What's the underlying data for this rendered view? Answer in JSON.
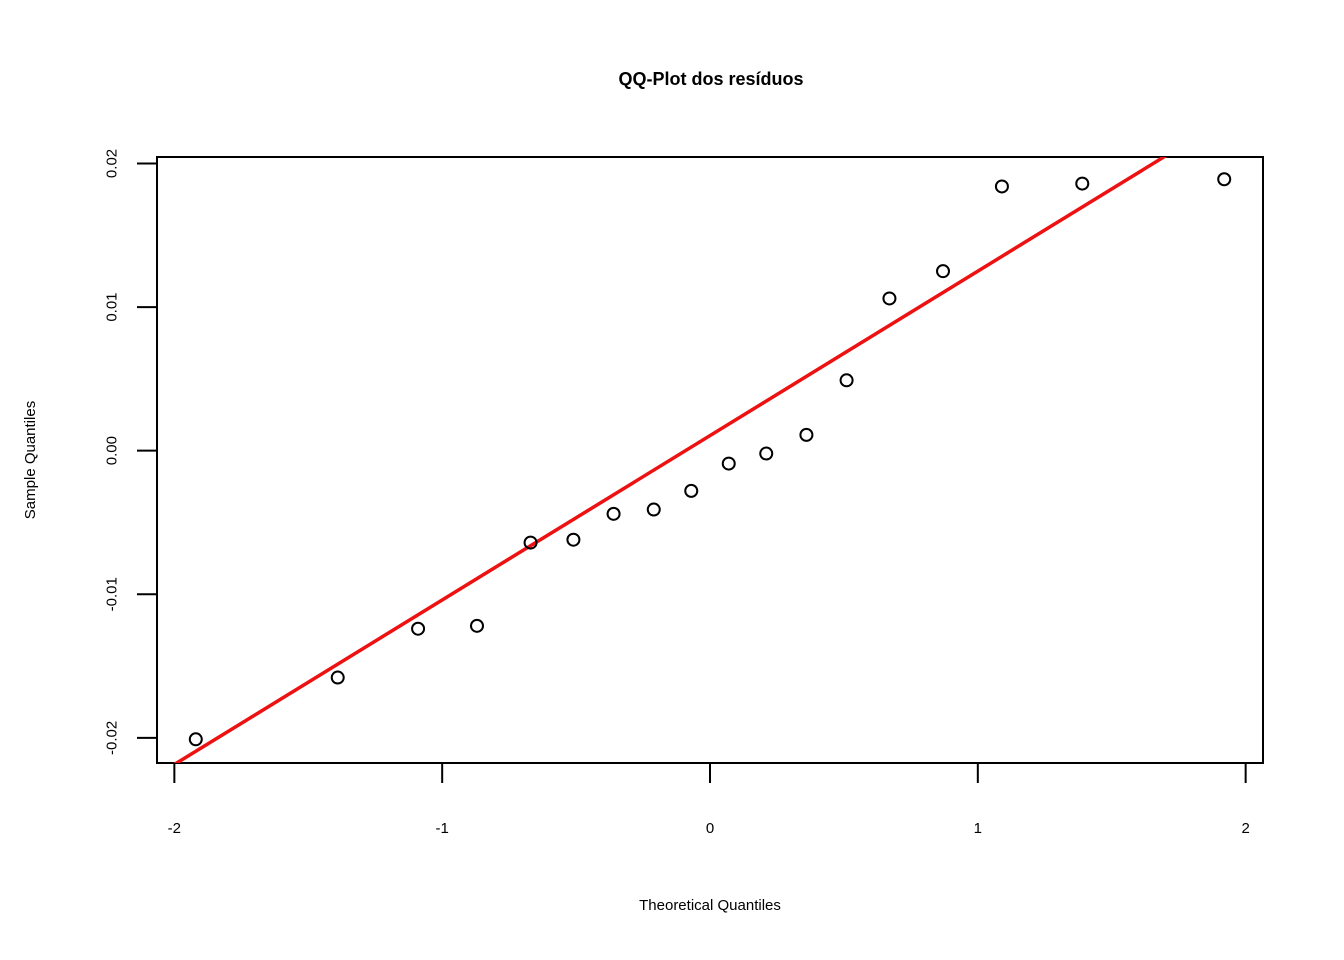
{
  "chart_data": {
    "type": "scatter",
    "title": "QQ-Plot dos resíduos",
    "xlabel": "Theoretical Quantiles",
    "ylabel": "Sample Quantiles",
    "xlim": [
      -2.0648,
      2.0648
    ],
    "ylim": [
      -0.02175,
      0.02045
    ],
    "x_ticks": [
      -2,
      -1,
      0,
      1,
      2
    ],
    "x_tick_labels": [
      "-2",
      "-1",
      "0",
      "1",
      "2"
    ],
    "y_ticks": [
      -0.02,
      -0.01,
      0.0,
      0.01,
      0.02
    ],
    "y_tick_labels": [
      "-0.02",
      "-0.01",
      "0.00",
      "0.01",
      "0.02"
    ],
    "grid": false,
    "legend": "none",
    "series": [
      {
        "x": [
          -1.92,
          -1.39,
          -1.09,
          -0.87,
          -0.67,
          -0.51,
          -0.36,
          -0.21,
          -0.07,
          0.07,
          0.21,
          0.36,
          0.51,
          0.67,
          0.87,
          1.09,
          1.39,
          1.92
        ],
        "y": [
          -0.0201,
          -0.0158,
          -0.0124,
          -0.0122,
          -0.0064,
          -0.0062,
          -0.0044,
          -0.0041,
          -0.0028,
          -0.0009,
          -0.0002,
          0.0011,
          0.0049,
          0.0106,
          0.0125,
          0.0184,
          0.0186,
          0.0189
        ],
        "marker": "open-circle",
        "color": "#000000"
      }
    ],
    "reference_line": {
      "intercept": 0.00105,
      "slope": 0.01145,
      "color": "#ee1111"
    }
  }
}
